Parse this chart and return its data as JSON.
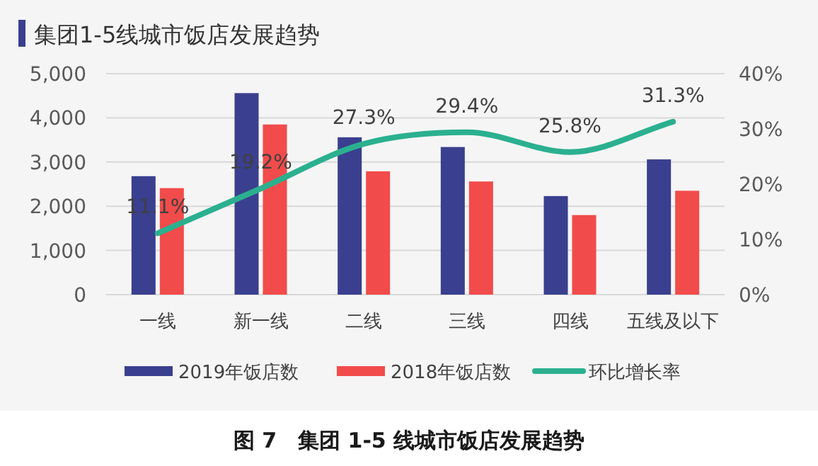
{
  "chart_data": {
    "type": "bar",
    "title": "集团1-5线城市饭店发展趋势",
    "categories": [
      "一线",
      "新一线",
      "二线",
      "三线",
      "四线",
      "五线及以下"
    ],
    "series": [
      {
        "name": "2019年饭店数",
        "color": "#3a3f8f",
        "values": [
          2680,
          4560,
          3560,
          3340,
          2230,
          3060
        ]
      },
      {
        "name": "2018年饭店数",
        "color": "#f24b4b",
        "values": [
          2410,
          3850,
          2790,
          2560,
          1800,
          2350
        ]
      },
      {
        "name": "环比增长率",
        "type": "line",
        "axis": "y2",
        "color": "#2bb08f",
        "values": [
          11.1,
          19.2,
          27.3,
          29.4,
          25.8,
          31.3
        ],
        "value_labels": [
          "11.1%",
          "19.2%",
          "27.3%",
          "29.4%",
          "25.8%",
          "31.3%"
        ]
      }
    ],
    "ylim": [
      0,
      5000
    ],
    "yticks": [
      0,
      {
        "value": 1000,
        "label": "1,000"
      },
      {
        "value": 2000,
        "label": "2,000"
      },
      {
        "value": 3000,
        "label": "3,000"
      },
      {
        "value": 4000,
        "label": "4,000"
      },
      {
        "value": 5000,
        "label": "5,000"
      }
    ],
    "y2lim": [
      0,
      40
    ],
    "y2ticks": [
      {
        "value": 0,
        "label": "0%"
      },
      {
        "value": 10,
        "label": "10%"
      },
      {
        "value": 20,
        "label": "20%"
      },
      {
        "value": 30,
        "label": "30%"
      },
      {
        "value": 40,
        "label": "40%"
      }
    ],
    "grid": "y",
    "legend": "bottom",
    "annotations": [
      "图 7　集团 1-5 线城市饭店发展趋势"
    ]
  }
}
